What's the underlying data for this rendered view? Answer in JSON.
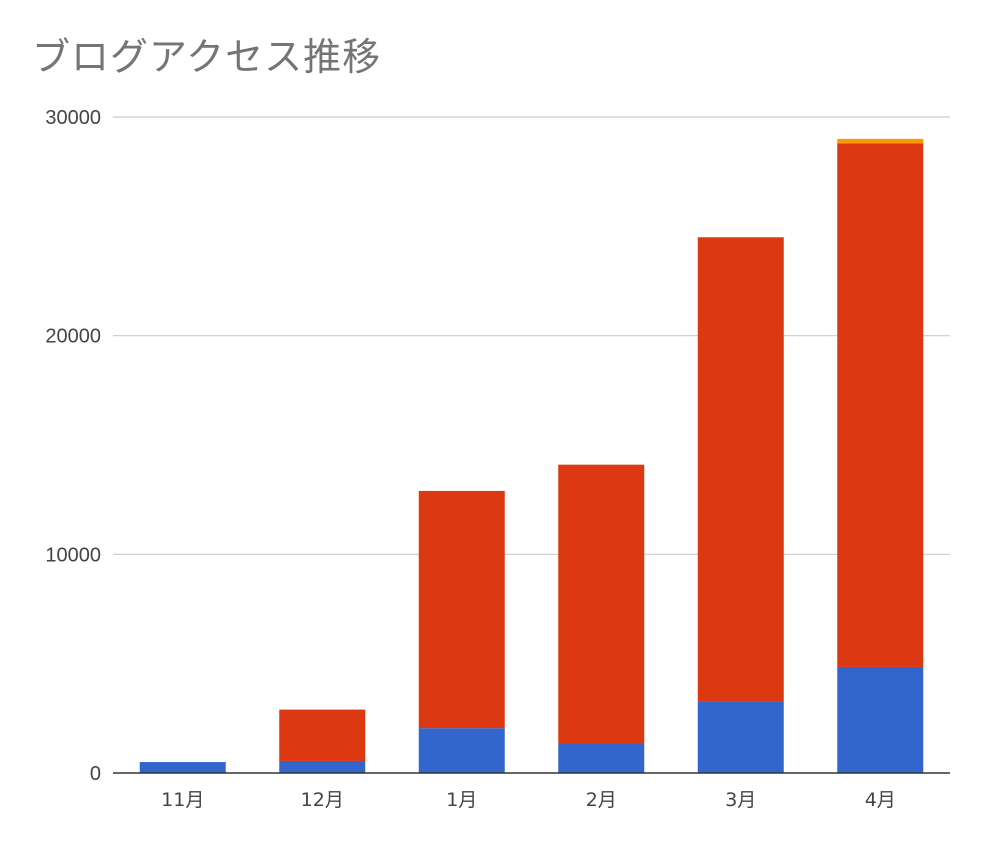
{
  "chart_data": {
    "type": "bar",
    "stacked": true,
    "title": "ブログアクセス推移",
    "categories": [
      "11月",
      "12月",
      "1月",
      "2月",
      "3月",
      "4月"
    ],
    "series": [
      {
        "color": "#3366cc",
        "values": [
          500,
          550,
          2050,
          1350,
          3250,
          4850
        ]
      },
      {
        "color": "#dc3912",
        "values": [
          0,
          2350,
          10850,
          12750,
          21250,
          23950
        ]
      },
      {
        "color": "#ff9900",
        "values": [
          0,
          0,
          0,
          0,
          0,
          200
        ]
      }
    ],
    "ylim": [
      0,
      30000
    ],
    "yticks": [
      "0",
      "10000",
      "20000",
      "30000"
    ],
    "grid": true
  }
}
